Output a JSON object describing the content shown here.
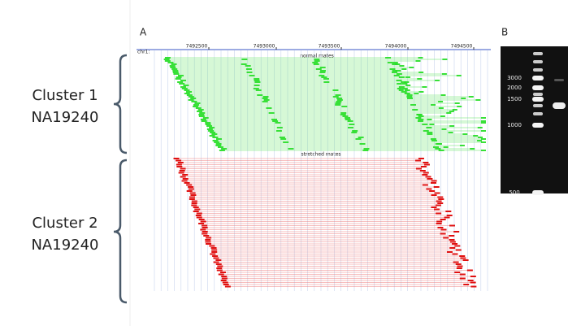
{
  "panel_labels": [
    "A",
    "B"
  ],
  "clusters": [
    {
      "name": "Cluster 1",
      "sample": "NA19240"
    },
    {
      "name": "Cluster 2",
      "sample": "NA19240"
    }
  ],
  "browser": {
    "chrom": "chr1:",
    "ticks": [
      "7492500",
      "7493000",
      "7493500",
      "7494000",
      "7494500"
    ],
    "tracks": [
      "normal mates",
      "stretched mates"
    ]
  },
  "gel": {
    "ladder": [
      "3000",
      "2000",
      "1500",
      "1000",
      "500"
    ]
  }
}
